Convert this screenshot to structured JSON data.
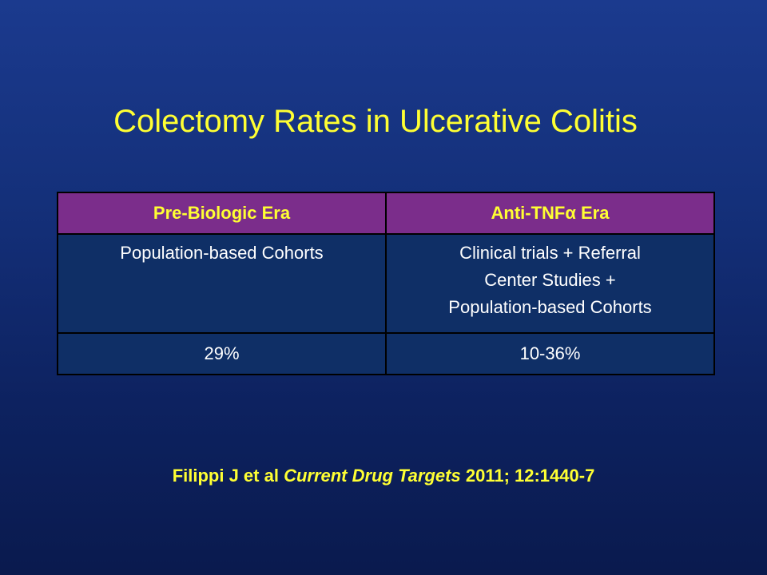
{
  "slide": {
    "title": "Colectomy Rates in Ulcerative Colitis"
  },
  "table": {
    "headers": [
      "Pre-Biologic Era",
      "Anti-TNFα Era"
    ],
    "rows": [
      {
        "cells": [
          [
            "Population-based Cohorts"
          ],
          [
            "Clinical trials + Referral",
            "Center Studies +",
            "Population-based Cohorts"
          ]
        ]
      },
      {
        "cells": [
          [
            "29%"
          ],
          [
            "10-36%"
          ]
        ]
      }
    ]
  },
  "citation": {
    "authors": "Filippi J et al",
    "journal": "Current Drug Targets",
    "details": "2011; 12:1440-7"
  },
  "colors": {
    "title": "#ffff33",
    "header_bg": "#7b2d8b",
    "cell_bg": "#0f2f66",
    "background_top": "#1b3a8e",
    "background_bottom": "#0a1a4e"
  }
}
